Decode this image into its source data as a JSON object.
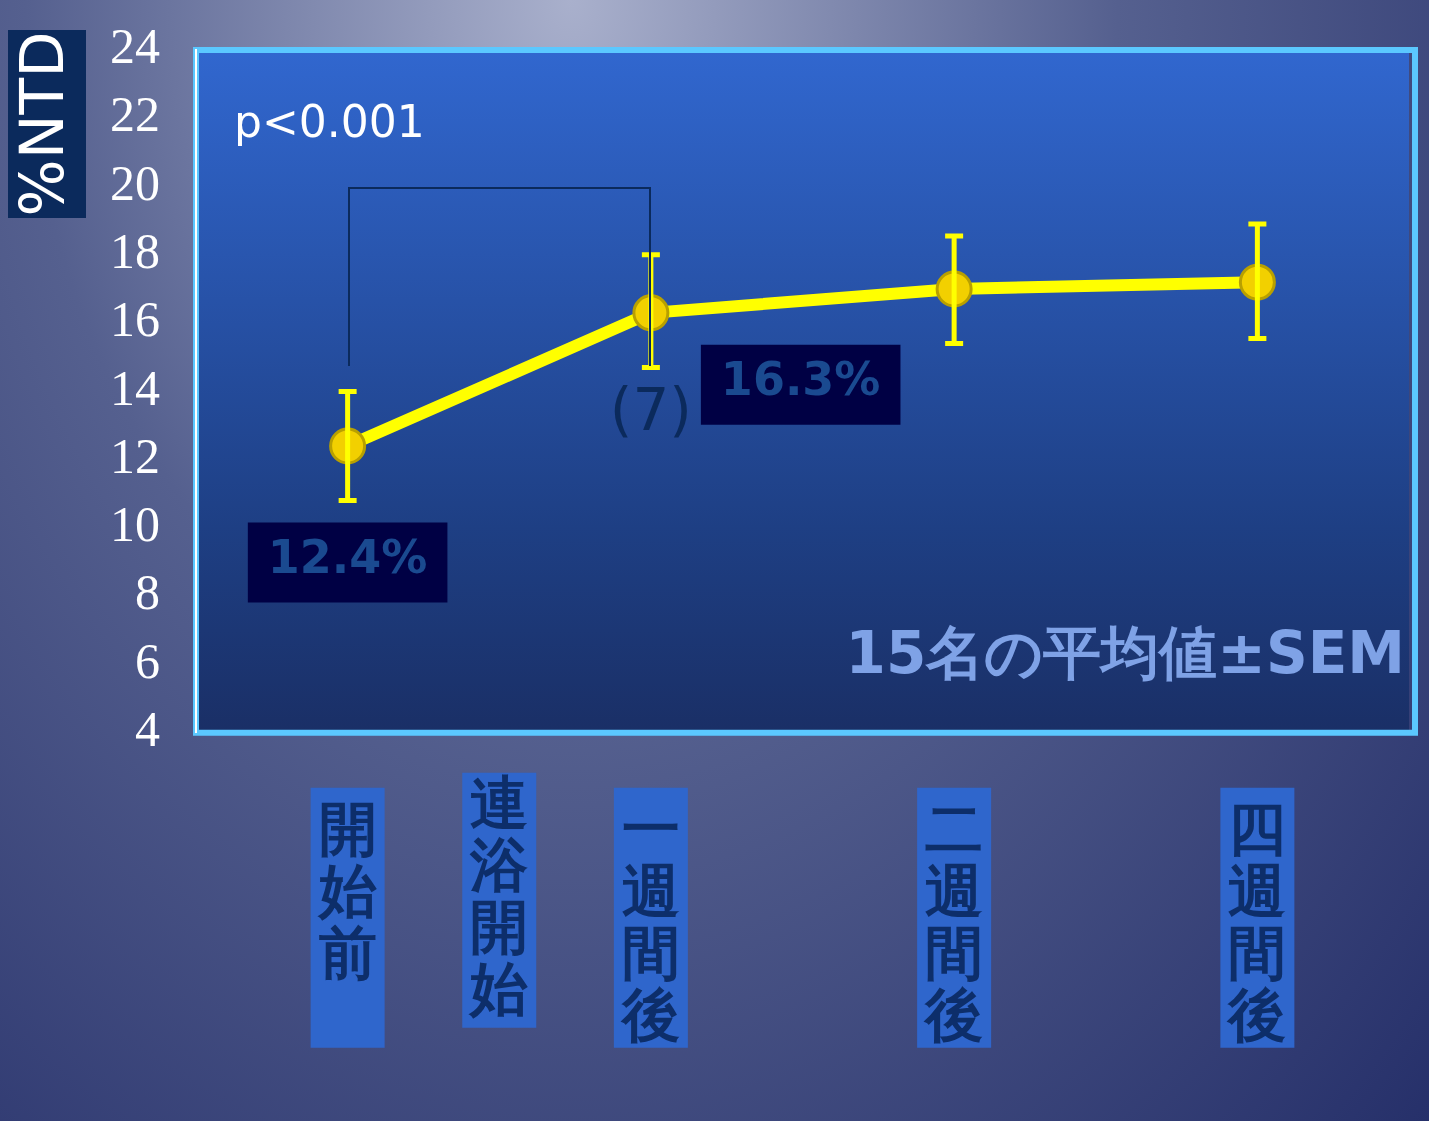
{
  "chart_data": {
    "type": "line",
    "ylabel": "%NTD",
    "categories": [
      "開始前",
      "一週間後",
      "二週間後",
      "四週間後"
    ],
    "series": [
      {
        "color": "#ffff00",
        "values": [
          12.4,
          16.3,
          17.0,
          17.2
        ],
        "errors": [
          [
            10.8,
            14.0
          ],
          [
            14.7,
            18.0
          ],
          [
            15.4,
            18.55
          ],
          [
            15.55,
            18.9
          ]
        ],
        "value_labels": [
          "12.4%",
          "16.3%",
          null,
          null
        ]
      }
    ],
    "ylim": [
      4,
      24
    ],
    "yticks": [
      4,
      6,
      8,
      10,
      12,
      14,
      16,
      18,
      20,
      22,
      24
    ],
    "grid": false,
    "legend": false,
    "marker": "circle",
    "line_style": "solid",
    "annotations": [
      "p<0.001",
      "(7)",
      "15名の平均値±SEM",
      "連浴開始"
    ]
  }
}
